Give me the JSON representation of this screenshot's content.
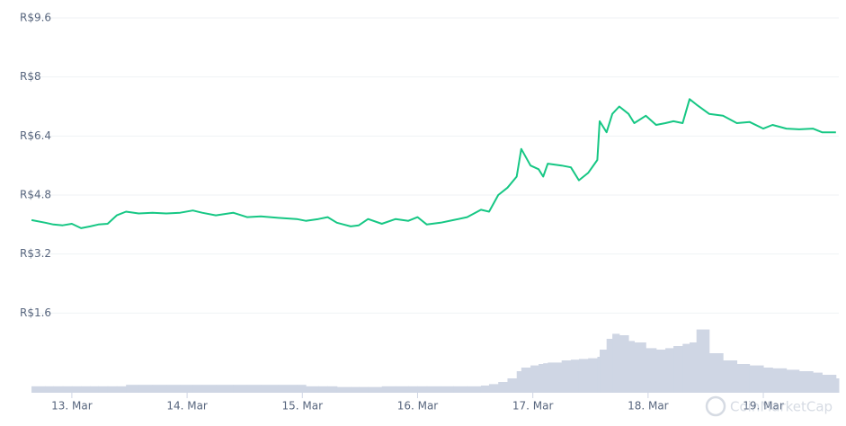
{
  "chart_data": {
    "type": "line",
    "x": [
      12.65,
      12.77,
      12.84,
      12.92,
      13.0,
      13.08,
      13.16,
      13.23,
      13.31,
      13.39,
      13.47,
      13.58,
      13.7,
      13.82,
      13.94,
      14.05,
      14.13,
      14.25,
      14.4,
      14.52,
      14.64,
      14.79,
      14.95,
      15.03,
      15.14,
      15.22,
      15.3,
      15.42,
      15.49,
      15.57,
      15.69,
      15.81,
      15.92,
      16.0,
      16.08,
      16.2,
      16.31,
      16.43,
      16.55,
      16.62,
      16.7,
      16.78,
      16.86,
      16.9,
      16.98,
      17.05,
      17.09,
      17.13,
      17.25,
      17.33,
      17.4,
      17.48,
      17.56,
      17.58,
      17.64,
      17.69,
      17.75,
      17.83,
      17.88,
      17.98,
      18.07,
      18.15,
      18.22,
      18.3,
      18.36,
      18.42,
      18.53,
      18.65,
      18.77,
      18.88,
      19.0,
      19.08,
      19.2,
      19.31,
      19.43,
      19.51,
      19.63
    ],
    "series": [
      {
        "color": "#16c784",
        "values": [
          4.12,
          4.05,
          4.0,
          3.98,
          4.02,
          3.9,
          3.95,
          4.0,
          4.02,
          4.25,
          4.35,
          4.3,
          4.32,
          4.3,
          4.32,
          4.38,
          4.32,
          4.25,
          4.32,
          4.2,
          4.22,
          4.18,
          4.15,
          4.1,
          4.15,
          4.2,
          4.05,
          3.95,
          3.98,
          4.15,
          4.02,
          4.15,
          4.1,
          4.2,
          4.0,
          4.05,
          4.12,
          4.2,
          4.4,
          4.35,
          4.8,
          5.0,
          5.3,
          6.05,
          5.6,
          5.5,
          5.3,
          5.65,
          5.6,
          5.55,
          5.2,
          5.4,
          5.75,
          6.8,
          6.5,
          7.0,
          7.2,
          7.0,
          6.75,
          6.95,
          6.7,
          6.75,
          6.8,
          6.75,
          7.4,
          7.25,
          7.0,
          6.95,
          6.75,
          6.78,
          6.6,
          6.7,
          6.6,
          6.58,
          6.6,
          6.5,
          6.5
        ]
      },
      {
        "color": "#cfd6e4",
        "axis": "y2",
        "values": [
          9,
          9,
          9,
          9,
          9,
          9,
          9,
          9,
          9,
          9,
          11,
          11,
          11,
          11,
          11,
          11,
          11,
          11,
          11,
          11,
          11,
          11,
          11,
          9,
          9,
          9,
          8,
          8,
          8,
          8,
          9,
          9,
          9,
          9,
          9,
          9,
          9,
          9,
          10,
          12,
          15,
          20,
          30,
          35,
          38,
          40,
          41,
          42,
          45,
          46,
          47,
          48,
          50,
          60,
          75,
          82,
          80,
          72,
          70,
          62,
          60,
          62,
          65,
          68,
          70,
          88,
          55,
          45,
          40,
          38,
          35,
          34,
          32,
          30,
          28,
          25,
          20
        ]
      }
    ],
    "xlim": [
      12.634,
      19.655
    ],
    "xticks": [
      {
        "value": 13,
        "label": "13. Mar"
      },
      {
        "value": 14,
        "label": "14. Mar"
      },
      {
        "value": 15,
        "label": "15. Mar"
      },
      {
        "value": 16,
        "label": "16. Mar"
      },
      {
        "value": 17,
        "label": "17. Mar"
      },
      {
        "value": 18,
        "label": "18. Mar"
      },
      {
        "value": 19,
        "label": "19. Mar"
      }
    ],
    "ylim": [
      0,
      9.6
    ],
    "yticks": [
      {
        "value": 1.6,
        "label": "R$1.6"
      },
      {
        "value": 3.2,
        "label": "R$3.2"
      },
      {
        "value": 4.8,
        "label": "R$4.8"
      },
      {
        "value": 6.4,
        "label": "R$6.4"
      },
      {
        "value": 8,
        "label": "R$8"
      },
      {
        "value": 9.6,
        "label": "R$9.6"
      }
    ],
    "y2lim": [
      0,
      100
    ],
    "grid": true,
    "watermark": "CoinMarketCap"
  }
}
